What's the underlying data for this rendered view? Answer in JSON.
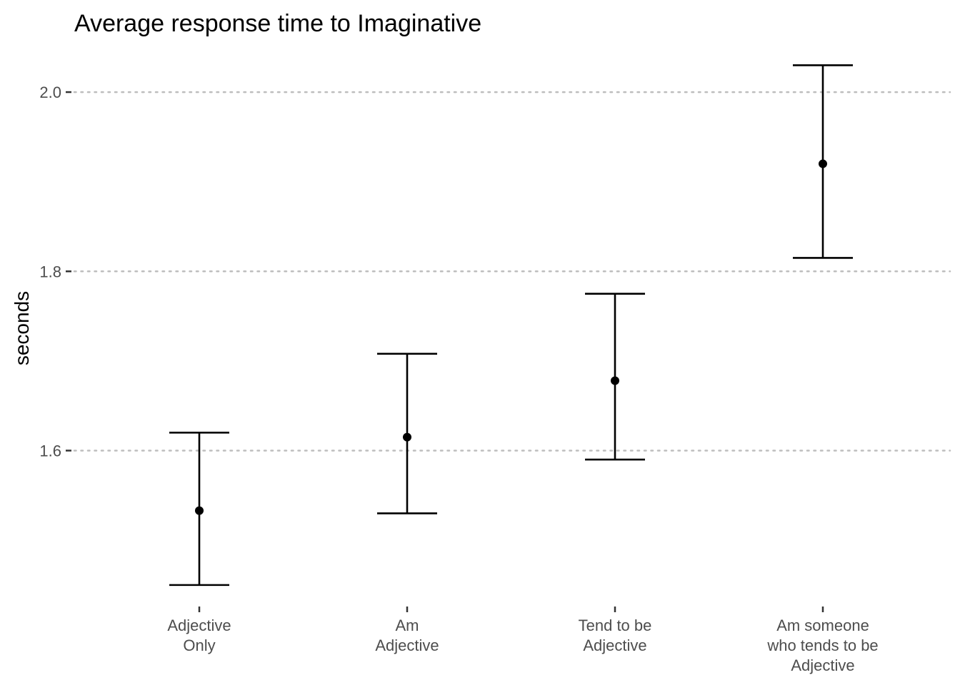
{
  "chart_data": {
    "type": "errorbar",
    "title": "Average response time to Imaginative",
    "xlabel": "",
    "ylabel": "seconds",
    "categories": [
      [
        "Adjective",
        "Only"
      ],
      [
        "Am",
        "Adjective"
      ],
      [
        "Tend to be",
        "Adjective"
      ],
      [
        "Am someone",
        "who tends to be",
        "Adjective"
      ]
    ],
    "series": [
      {
        "values": [
          1.533,
          1.615,
          1.678,
          1.92
        ],
        "lower": [
          1.45,
          1.53,
          1.59,
          1.815
        ],
        "upper": [
          1.62,
          1.708,
          1.775,
          2.03
        ]
      }
    ],
    "yticks": [
      1.6,
      1.8,
      2.0
    ],
    "ytick_labels": [
      "1.6",
      "1.8",
      "2.0"
    ],
    "ylim": [
      1.43,
      2.055
    ],
    "grid": "horizontal-major-dotted",
    "legend": "none",
    "colors": {
      "mark": "#000000",
      "grid": "#bdbdbd",
      "tick_text": "#4d4d4d"
    }
  }
}
